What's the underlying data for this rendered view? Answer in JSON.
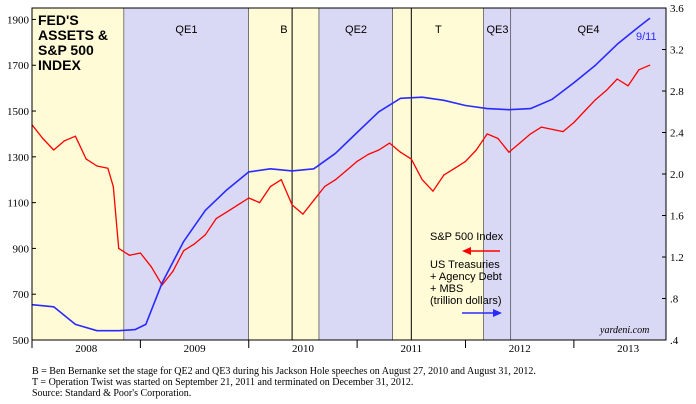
{
  "colors": {
    "qe_band": "#d9d9f5",
    "other_band": "#fffbd6",
    "sp500_line": "#ff0000",
    "fed_line": "#2a2aff",
    "frame": "#000000"
  },
  "chart_data": {
    "type": "line",
    "title": [
      "FED'S",
      "ASSETS &",
      "S&P 500",
      "INDEX"
    ],
    "x_range": [
      2008.0,
      2013.85
    ],
    "y_left": {
      "ticks": [
        "500",
        "700",
        "900",
        "1100",
        "1300",
        "1500",
        "1700",
        "1900"
      ],
      "range": [
        500,
        1950
      ]
    },
    "y_right": {
      "ticks": [
        ".4",
        ".8",
        "1.2",
        "1.6",
        "2.0",
        "2.4",
        "2.8",
        "3.2",
        "3.6"
      ],
      "range": [
        0.4,
        3.6
      ]
    },
    "x_ticks": [
      "2008",
      "2009",
      "2010",
      "2011",
      "2012",
      "2013"
    ],
    "periods": [
      {
        "label": "",
        "start": 2008.0,
        "end": 2008.85,
        "kind": "other"
      },
      {
        "label": "QE1",
        "start": 2008.85,
        "end": 2010.0,
        "kind": "qe"
      },
      {
        "label": "B",
        "start": 2010.0,
        "end": 2010.65,
        "kind": "other"
      },
      {
        "label": "QE2",
        "start": 2010.65,
        "end": 2011.33,
        "kind": "qe"
      },
      {
        "label": "T",
        "start": 2011.33,
        "end": 2012.17,
        "kind": "other"
      },
      {
        "label": "QE3",
        "start": 2012.17,
        "end": 2012.42,
        "kind": "qe"
      },
      {
        "label": "QE4",
        "start": 2012.42,
        "end": 2013.85,
        "kind": "qe"
      }
    ],
    "event_lines": [
      2010.4,
      2011.5
    ],
    "series": [
      {
        "name": "S&P 500 Index",
        "axis": "left",
        "x": [
          2008.0,
          2008.1,
          2008.2,
          2008.3,
          2008.4,
          2008.5,
          2008.6,
          2008.7,
          2008.75,
          2008.8,
          2008.9,
          2009.0,
          2009.1,
          2009.2,
          2009.3,
          2009.4,
          2009.5,
          2009.6,
          2009.7,
          2009.8,
          2009.9,
          2010.0,
          2010.1,
          2010.2,
          2010.3,
          2010.4,
          2010.5,
          2010.6,
          2010.7,
          2010.8,
          2010.9,
          2011.0,
          2011.1,
          2011.2,
          2011.3,
          2011.4,
          2011.5,
          2011.6,
          2011.7,
          2011.8,
          2011.9,
          2012.0,
          2012.1,
          2012.2,
          2012.3,
          2012.4,
          2012.5,
          2012.6,
          2012.7,
          2012.8,
          2012.9,
          2013.0,
          2013.1,
          2013.2,
          2013.3,
          2013.4,
          2013.5,
          2013.6,
          2013.7
        ],
        "values": [
          1440,
          1380,
          1330,
          1370,
          1390,
          1290,
          1260,
          1250,
          1170,
          900,
          870,
          880,
          820,
          740,
          800,
          890,
          920,
          960,
          1030,
          1060,
          1090,
          1120,
          1100,
          1170,
          1200,
          1090,
          1050,
          1110,
          1170,
          1200,
          1240,
          1280,
          1310,
          1330,
          1360,
          1320,
          1290,
          1200,
          1150,
          1220,
          1250,
          1280,
          1330,
          1400,
          1380,
          1320,
          1360,
          1400,
          1430,
          1420,
          1410,
          1450,
          1500,
          1550,
          1590,
          1640,
          1610,
          1680,
          1700
        ]
      },
      {
        "name": "US Treasuries + Agency Debt + MBS (trillion dollars)",
        "axis": "right",
        "x": [
          2008.0,
          2008.2,
          2008.4,
          2008.6,
          2008.8,
          2008.95,
          2009.05,
          2009.2,
          2009.4,
          2009.6,
          2009.8,
          2010.0,
          2010.2,
          2010.4,
          2010.6,
          2010.8,
          2011.0,
          2011.2,
          2011.4,
          2011.6,
          2011.8,
          2012.0,
          2012.2,
          2012.4,
          2012.6,
          2012.8,
          2013.0,
          2013.2,
          2013.4,
          2013.6,
          2013.7
        ],
        "values": [
          0.74,
          0.72,
          0.55,
          0.49,
          0.49,
          0.5,
          0.55,
          0.95,
          1.35,
          1.65,
          1.85,
          2.02,
          2.05,
          2.03,
          2.05,
          2.2,
          2.4,
          2.6,
          2.73,
          2.74,
          2.71,
          2.66,
          2.63,
          2.62,
          2.63,
          2.72,
          2.88,
          3.05,
          3.25,
          3.42,
          3.5
        ]
      }
    ]
  },
  "labels": {
    "end_label": "9/11",
    "legend_sp": "S&P 500 Index",
    "legend_fed": [
      "US Treasuries",
      "+ Agency Debt",
      "+ MBS",
      "(trillion dollars)"
    ],
    "credit": "yardeni.com"
  },
  "notes": [
    "B = Ben Bernanke set the stage for QE2 and QE3 during his Jackson Hole speeches on August 27, 2010 and August 31, 2012.",
    "T = Operation Twist was started on September 21, 2011 and terminated on December 31, 2012.",
    "Source: Standard & Poor's Corporation."
  ]
}
